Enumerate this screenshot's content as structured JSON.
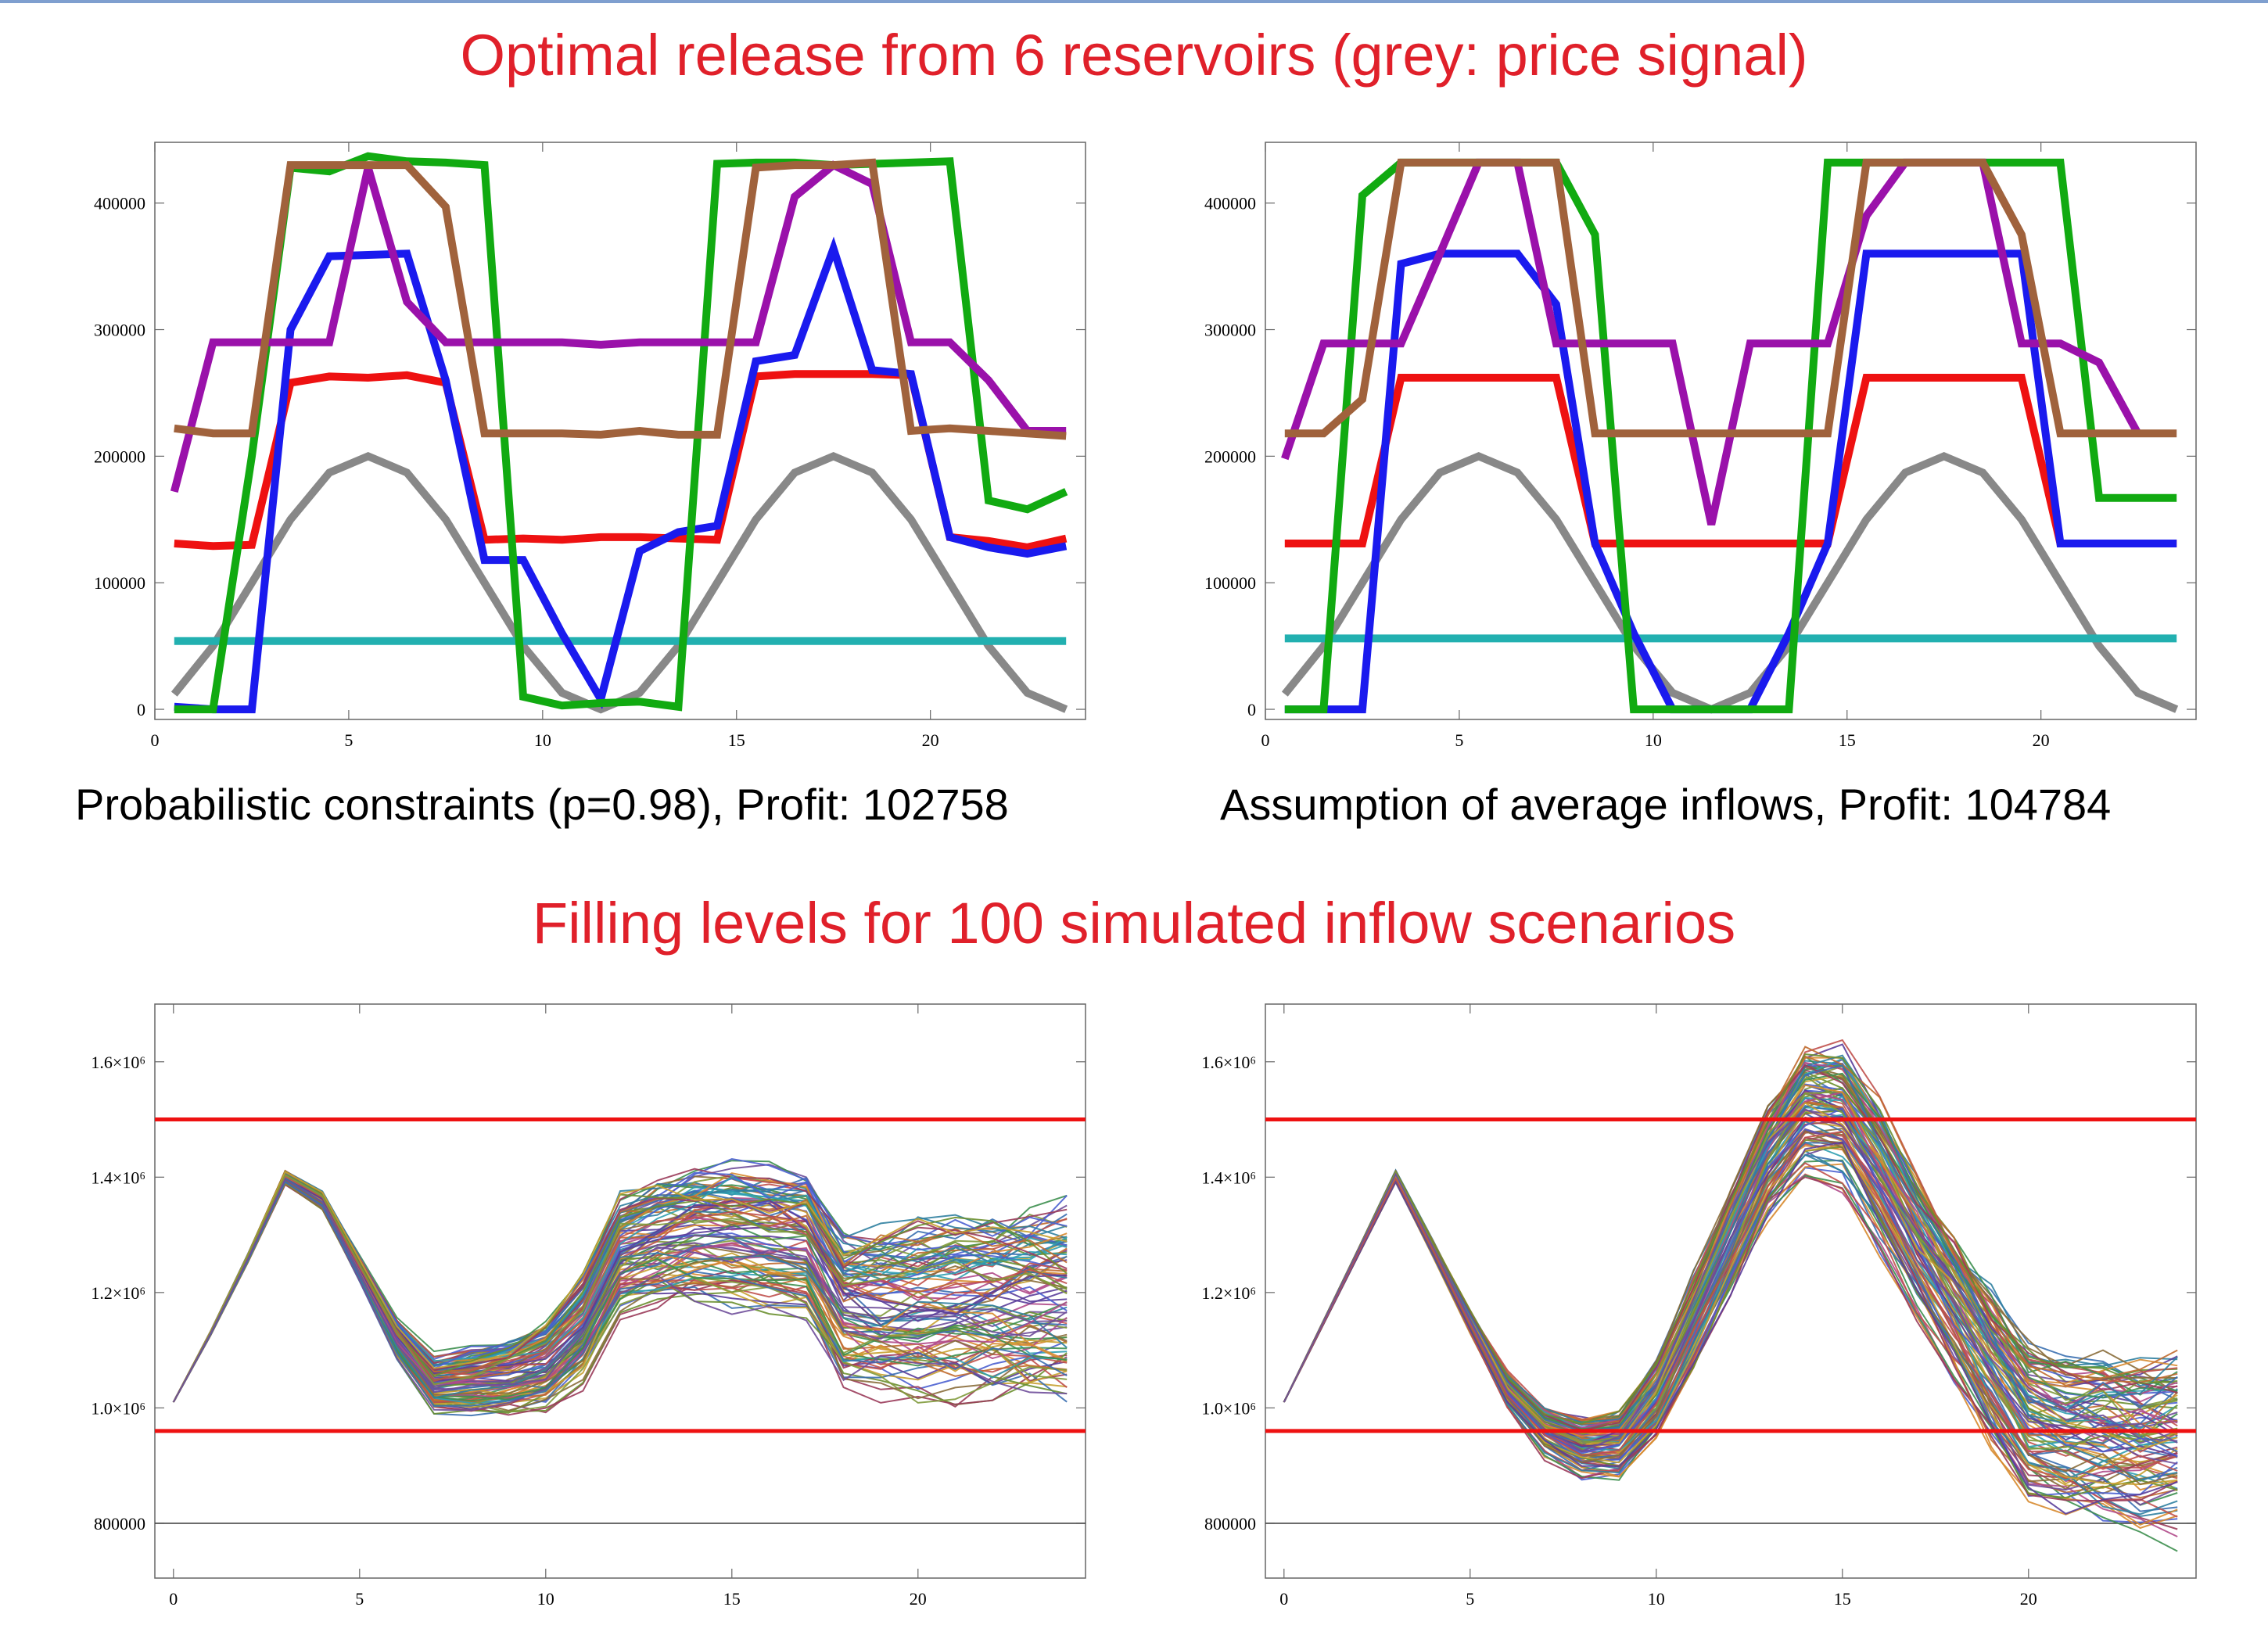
{
  "headings": {
    "top": "Optimal release from 6 reservoirs (grey: price signal)",
    "bottom": "Filling levels for 100 simulated inflow scenarios"
  },
  "captions": {
    "left": "Probabilistic constraints (p=0.98), Profit: 102758",
    "right": "Assumption of average inflows, Profit: 104784"
  },
  "chart_data": [
    {
      "type": "line",
      "xlim": [
        0,
        24
      ],
      "ylim": [
        -8000,
        448000
      ],
      "xticks": [
        0,
        5,
        10,
        15,
        20
      ],
      "yticks": [
        0,
        100000,
        200000,
        300000,
        400000
      ],
      "ytick_labels": [
        "0",
        "100000",
        "200000",
        "300000",
        "400000"
      ],
      "series": [
        {
          "color": "#888888",
          "x": [
            0.5,
            1.5,
            2.5,
            3.5,
            4.5,
            5.5,
            6.5,
            7.5,
            8.5,
            9.5,
            10.5,
            11.5,
            12.5,
            13.5,
            14.5,
            15.5,
            16.5,
            17.5,
            18.5,
            19.5,
            20.5,
            21.5,
            22.5,
            23.5
          ],
          "values": [
            12000,
            50000,
            100000,
            150000,
            187000,
            200000,
            187000,
            150000,
            100000,
            50000,
            13000,
            0,
            13000,
            50000,
            100000,
            150000,
            187000,
            200000,
            187000,
            150000,
            100000,
            50000,
            13000,
            0
          ]
        },
        {
          "color": "#22b0b0",
          "x": [
            0.5,
            23.5
          ],
          "values": [
            54000,
            54000
          ]
        },
        {
          "color": "#ee1111",
          "x": [
            0.5,
            1.5,
            2.5,
            3.5,
            4.5,
            5.5,
            6.5,
            7.5,
            8.5,
            9.5,
            10.5,
            11.5,
            12.5,
            13.5,
            14.5,
            15.5,
            16.5,
            17.5,
            18.5,
            19.5,
            20.5,
            21.5,
            22.5,
            23.5
          ],
          "values": [
            131000,
            129000,
            130000,
            258000,
            263000,
            262000,
            264000,
            258000,
            134000,
            135000,
            134000,
            136000,
            136000,
            135000,
            134000,
            263000,
            265000,
            265000,
            265000,
            264000,
            136000,
            133000,
            128000,
            135000
          ]
        },
        {
          "color": "#1a1aee",
          "x": [
            0.5,
            1.5,
            2.5,
            3.5,
            4.5,
            5.5,
            6.5,
            7.5,
            8.5,
            9.5,
            10.5,
            11.5,
            12.5,
            13.5,
            14.5,
            15.5,
            16.5,
            17.5,
            18.5,
            19.5,
            20.5,
            21.5,
            22.5,
            23.5
          ],
          "values": [
            2000,
            0,
            0,
            300000,
            358000,
            359000,
            360000,
            260000,
            118000,
            118000,
            60000,
            8000,
            125000,
            140000,
            145000,
            275000,
            280000,
            364000,
            268000,
            265000,
            136000,
            128000,
            123000,
            129000
          ]
        },
        {
          "color": "#11aa11",
          "x": [
            0.5,
            1.5,
            2.5,
            3.5,
            4.5,
            5.5,
            6.5,
            7.5,
            8.5,
            9.5,
            10.5,
            11.5,
            12.5,
            13.5,
            14.5,
            15.5,
            16.5,
            17.5,
            18.5,
            19.5,
            20.5,
            21.5,
            22.5,
            23.5
          ],
          "values": [
            0,
            0,
            200000,
            428000,
            425000,
            437000,
            433000,
            432000,
            430000,
            10000,
            3000,
            5000,
            6000,
            2000,
            431000,
            432000,
            432000,
            430000,
            431000,
            432000,
            433000,
            165000,
            158000,
            172000
          ]
        },
        {
          "color": "#9a11aa",
          "x": [
            0.5,
            1.5,
            2.5,
            3.5,
            4.5,
            5.5,
            6.5,
            7.5,
            8.5,
            9.5,
            10.5,
            11.5,
            12.5,
            13.5,
            14.5,
            15.5,
            16.5,
            17.5,
            18.5,
            19.5,
            20.5,
            21.5,
            22.5,
            23.5
          ],
          "values": [
            172000,
            290000,
            290000,
            290000,
            290000,
            428000,
            322000,
            290000,
            290000,
            290000,
            290000,
            288000,
            290000,
            290000,
            290000,
            290000,
            405000,
            430000,
            415000,
            290000,
            290000,
            260000,
            220000,
            220000
          ]
        },
        {
          "color": "#a0623c",
          "x": [
            0.5,
            1.5,
            2.5,
            3.5,
            4.5,
            5.5,
            6.5,
            7.5,
            8.5,
            9.5,
            10.5,
            11.5,
            12.5,
            13.5,
            14.5,
            15.5,
            16.5,
            17.5,
            18.5,
            19.5,
            20.5,
            21.5,
            22.5,
            23.5
          ],
          "values": [
            222000,
            218000,
            218000,
            430000,
            430000,
            430000,
            430000,
            397000,
            218000,
            218000,
            218000,
            217000,
            220000,
            217000,
            217000,
            428000,
            430000,
            430000,
            432000,
            220000,
            222000,
            220000,
            218000,
            216000
          ]
        }
      ]
    },
    {
      "type": "line",
      "xlim": [
        0,
        24
      ],
      "ylim": [
        -8000,
        448000
      ],
      "xticks": [
        0,
        5,
        10,
        15,
        20
      ],
      "yticks": [
        0,
        100000,
        200000,
        300000,
        400000
      ],
      "ytick_labels": [
        "0",
        "100000",
        "200000",
        "300000",
        "400000"
      ],
      "series": [
        {
          "color": "#888888",
          "x": [
            0.5,
            1.5,
            2.5,
            3.5,
            4.5,
            5.5,
            6.5,
            7.5,
            8.5,
            9.5,
            10.5,
            11.5,
            12.5,
            13.5,
            14.5,
            15.5,
            16.5,
            17.5,
            18.5,
            19.5,
            20.5,
            21.5,
            22.5,
            23.5
          ],
          "values": [
            12000,
            50000,
            100000,
            150000,
            187000,
            200000,
            187000,
            150000,
            100000,
            50000,
            13000,
            0,
            13000,
            50000,
            100000,
            150000,
            187000,
            200000,
            187000,
            150000,
            100000,
            50000,
            13000,
            0
          ]
        },
        {
          "color": "#22b0b0",
          "x": [
            0.5,
            23.5
          ],
          "values": [
            56000,
            56000
          ]
        },
        {
          "color": "#ee1111",
          "x": [
            0.5,
            1.5,
            2.5,
            3.5,
            4.5,
            5.5,
            6.5,
            7.5,
            8.5,
            9.5,
            10.5,
            11.5,
            12.5,
            13.5,
            14.5,
            15.5,
            16.5,
            17.5,
            18.5,
            19.5,
            20.5,
            21.5,
            22.5,
            23.5
          ],
          "values": [
            131000,
            131000,
            131000,
            262000,
            262000,
            262000,
            262000,
            262000,
            131000,
            131000,
            131000,
            131000,
            131000,
            131000,
            131000,
            262000,
            262000,
            262000,
            262000,
            262000,
            131000,
            131000,
            131000,
            131000
          ]
        },
        {
          "color": "#1a1aee",
          "x": [
            0.5,
            1.5,
            2.5,
            3.5,
            4.5,
            5.5,
            6.5,
            7.5,
            8.5,
            9.5,
            10.5,
            11.5,
            12.5,
            13.5,
            14.5,
            15.5,
            16.5,
            17.5,
            18.5,
            19.5,
            20.5,
            21.5,
            22.5,
            23.5
          ],
          "values": [
            0,
            0,
            0,
            352000,
            360000,
            360000,
            360000,
            320000,
            131000,
            60000,
            0,
            0,
            0,
            60000,
            131000,
            360000,
            360000,
            360000,
            360000,
            360000,
            131000,
            131000,
            131000,
            131000
          ]
        },
        {
          "color": "#11aa11",
          "x": [
            0.5,
            1.5,
            2.5,
            3.5,
            4.5,
            5.5,
            6.5,
            7.5,
            8.5,
            9.5,
            10.5,
            11.5,
            12.5,
            13.5,
            14.5,
            15.5,
            16.5,
            17.5,
            18.5,
            19.5,
            20.5,
            21.5,
            22.5,
            23.5
          ],
          "values": [
            0,
            0,
            406000,
            432000,
            432000,
            432000,
            432000,
            432000,
            375000,
            0,
            0,
            0,
            0,
            0,
            432000,
            432000,
            432000,
            432000,
            432000,
            432000,
            432000,
            167000,
            167000,
            167000
          ]
        },
        {
          "color": "#9a11aa",
          "x": [
            0.5,
            1.5,
            2.5,
            3.5,
            4.5,
            5.5,
            6.5,
            7.5,
            8.5,
            9.5,
            10.5,
            11.5,
            12.5,
            13.5,
            14.5,
            15.5,
            16.5,
            17.5,
            18.5,
            19.5,
            20.5,
            21.5,
            22.5
          ],
          "values": [
            198000,
            289000,
            289000,
            289000,
            360000,
            432000,
            432000,
            289000,
            289000,
            289000,
            289000,
            146000,
            289000,
            289000,
            289000,
            390000,
            432000,
            432000,
            432000,
            289000,
            289000,
            274000,
            218000
          ]
        },
        {
          "color": "#a0623c",
          "x": [
            0.5,
            1.5,
            2.5,
            3.5,
            4.5,
            5.5,
            6.5,
            7.5,
            8.5,
            9.5,
            10.5,
            11.5,
            12.5,
            13.5,
            14.5,
            15.5,
            16.5,
            17.5,
            18.5,
            19.5,
            20.5,
            21.5,
            22.5,
            23.5
          ],
          "values": [
            218000,
            218000,
            245000,
            432000,
            432000,
            432000,
            432000,
            432000,
            218000,
            218000,
            218000,
            218000,
            218000,
            218000,
            218000,
            432000,
            432000,
            432000,
            432000,
            375000,
            218000,
            218000,
            218000,
            218000
          ]
        }
      ]
    },
    {
      "type": "line",
      "xlim": [
        -0.5,
        24.5
      ],
      "ylim": [
        705000,
        1700000
      ],
      "xticks": [
        0,
        5,
        10,
        15,
        20
      ],
      "yticks": [
        800000,
        1000000,
        1200000,
        1400000,
        1600000
      ],
      "ytick_labels": [
        "800000",
        "1.0×10⁶",
        "1.2×10⁶",
        "1.4×10⁶",
        "1.6×10⁶"
      ],
      "reference_lines": [
        {
          "color": "#ee1111",
          "value": 1500000
        },
        {
          "color": "#ee1111",
          "value": 960000
        },
        {
          "color": "#444444",
          "value": 800000
        }
      ],
      "scenario_count": 100,
      "mean_path": {
        "x": [
          0,
          1,
          2,
          3,
          4,
          5,
          6,
          7,
          8,
          9,
          10,
          11,
          12,
          13,
          14,
          15,
          16,
          17,
          18,
          19,
          20,
          21,
          22,
          23,
          24
        ],
        "values": [
          1010000,
          1130000,
          1260000,
          1400000,
          1360000,
          1240000,
          1120000,
          1040000,
          1045000,
          1055000,
          1075000,
          1140000,
          1270000,
          1290000,
          1300000,
          1295000,
          1290000,
          1285000,
          1175000,
          1170000,
          1175000,
          1180000,
          1180000,
          1180000,
          1180000
        ]
      },
      "spread": {
        "x": [
          0,
          1,
          2,
          3,
          4,
          5,
          6,
          7,
          8,
          9,
          10,
          11,
          12,
          13,
          14,
          15,
          16,
          17,
          18,
          19,
          20,
          21,
          22,
          23,
          24
        ],
        "values": [
          0,
          3000,
          6000,
          10000,
          14000,
          20000,
          28000,
          40000,
          50000,
          58000,
          66000,
          76000,
          86000,
          94000,
          100000,
          104000,
          106000,
          108000,
          118000,
          124000,
          130000,
          134000,
          138000,
          140000,
          142000
        ]
      }
    },
    {
      "type": "line",
      "xlim": [
        -0.5,
        24.5
      ],
      "ylim": [
        705000,
        1700000
      ],
      "xticks": [
        0,
        5,
        10,
        15,
        20
      ],
      "yticks": [
        800000,
        1000000,
        1200000,
        1400000,
        1600000
      ],
      "ytick_labels": [
        "800000",
        "1.0×10⁶",
        "1.2×10⁶",
        "1.4×10⁶",
        "1.6×10⁶"
      ],
      "reference_lines": [
        {
          "color": "#ee1111",
          "value": 1500000
        },
        {
          "color": "#ee1111",
          "value": 960000
        },
        {
          "color": "#444444",
          "value": 800000
        }
      ],
      "scenario_count": 100,
      "mean_path": {
        "x": [
          0,
          1,
          2,
          3,
          4,
          5,
          6,
          7,
          8,
          9,
          10,
          11,
          12,
          13,
          14,
          15,
          16,
          17,
          18,
          19,
          20,
          21,
          22,
          23,
          24
        ],
        "values": [
          1010000,
          1140000,
          1270000,
          1400000,
          1275000,
          1150000,
          1030000,
          960000,
          930000,
          935000,
          1010000,
          1140000,
          1280000,
          1420000,
          1510000,
          1500000,
          1400000,
          1280000,
          1170000,
          1060000,
          960000,
          940000,
          940000,
          930000,
          935000
        ]
      },
      "spread": {
        "x": [
          0,
          1,
          2,
          3,
          4,
          5,
          6,
          7,
          8,
          9,
          10,
          11,
          12,
          13,
          14,
          15,
          16,
          17,
          18,
          19,
          20,
          21,
          22,
          23,
          24
        ],
        "values": [
          0,
          3000,
          6000,
          10000,
          14000,
          20000,
          28000,
          38000,
          48000,
          58000,
          66000,
          76000,
          86000,
          96000,
          104000,
          110000,
          114000,
          118000,
          124000,
          130000,
          134000,
          138000,
          140000,
          142000,
          142000
        ]
      }
    }
  ]
}
